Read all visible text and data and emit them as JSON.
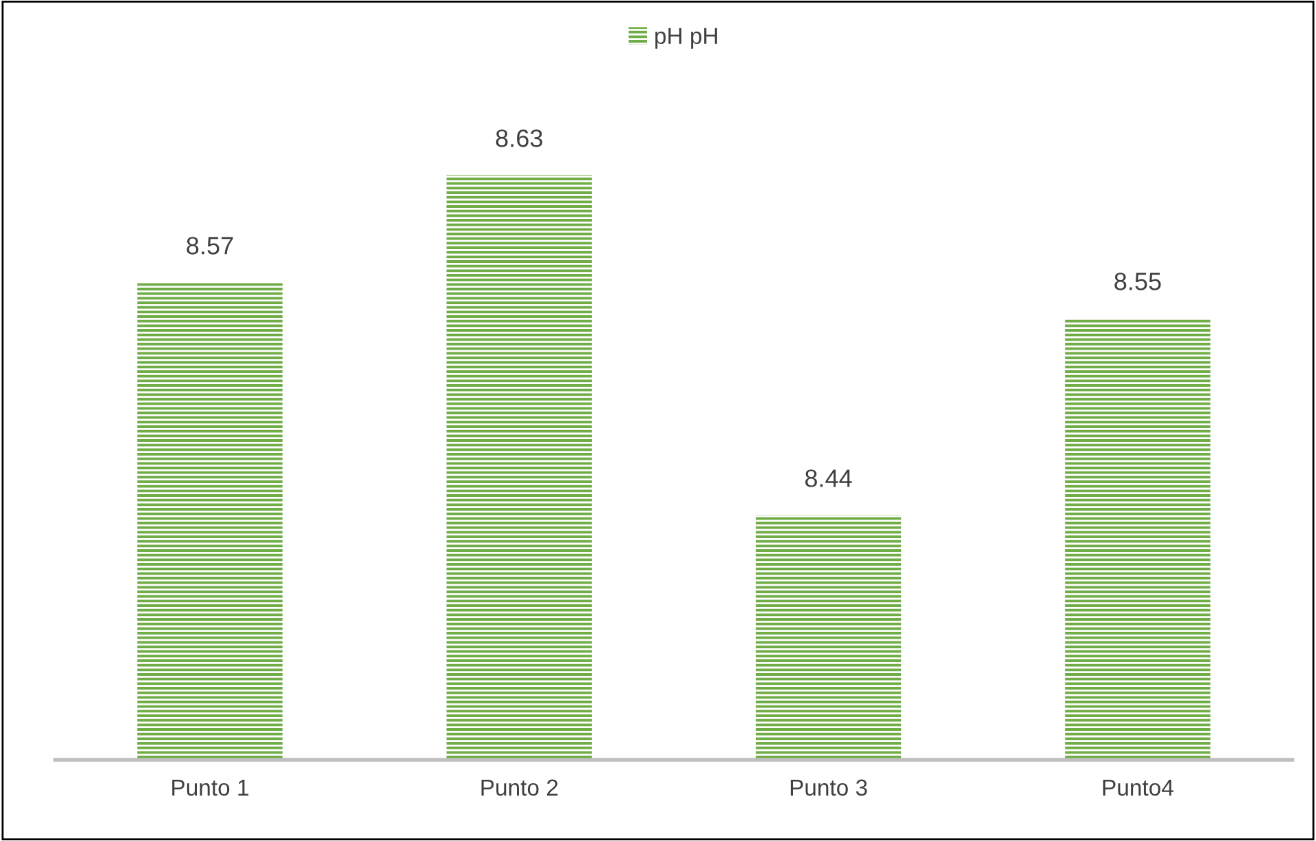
{
  "chart_data": {
    "type": "bar",
    "categories": [
      "Punto 1",
      "Punto 2",
      "Punto 3",
      "Punto4"
    ],
    "series": [
      {
        "name": "pH pH",
        "color": "#70ad47",
        "values": [
          8.57,
          8.63,
          8.44,
          8.55
        ]
      }
    ],
    "data_labels": true,
    "tick_labels": "x",
    "legend": "top"
  }
}
